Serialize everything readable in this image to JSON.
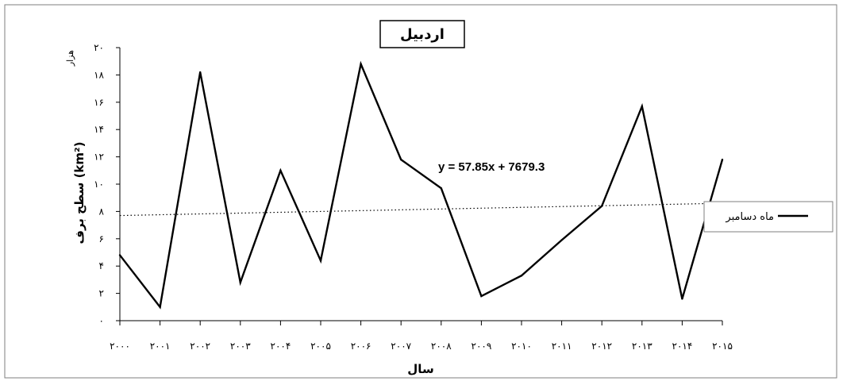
{
  "chart_data": {
    "type": "line",
    "title": "اردبیل",
    "xlabel": "سال",
    "ylabel": "سطح برف (km²)",
    "y_unit_note": "هزار",
    "x_ticks": [
      "۲۰۰۰",
      "۲۰۰۱",
      "۲۰۰۲",
      "۲۰۰۳",
      "۲۰۰۴",
      "۲۰۰۵",
      "۲۰۰۶",
      "۲۰۰۷",
      "۲۰۰۸",
      "۲۰۰۹",
      "۲۰۱۰",
      "۲۰۱۱",
      "۲۰۱۲",
      "۲۰۱۳",
      "۲۰۱۴",
      "۲۰۱۵"
    ],
    "y_ticks": [
      "۰",
      "۲",
      "۴",
      "۶",
      "۸",
      "۱۰",
      "۱۲",
      "۱۴",
      "۱۶",
      "۱۸",
      "۲۰"
    ],
    "x": [
      2000,
      2001,
      2002,
      2003,
      2004,
      2005,
      2006,
      2007,
      2008,
      2009,
      2010,
      2011,
      2012,
      2013,
      2014,
      2015
    ],
    "ylim": [
      0,
      20
    ],
    "series": [
      {
        "name": "ماه دسامبر",
        "color": "#000000",
        "values": [
          4.8,
          1.0,
          18.2,
          2.8,
          11.0,
          4.4,
          18.8,
          11.8,
          9.7,
          1.8,
          3.3,
          5.9,
          8.4,
          15.7,
          1.6,
          11.8
        ]
      }
    ],
    "trendline": {
      "equation": "y = 57.85x + 7679.3",
      "start": 7.7,
      "end": 8.6,
      "style": "dotted"
    },
    "legend": "right",
    "grid": false
  }
}
